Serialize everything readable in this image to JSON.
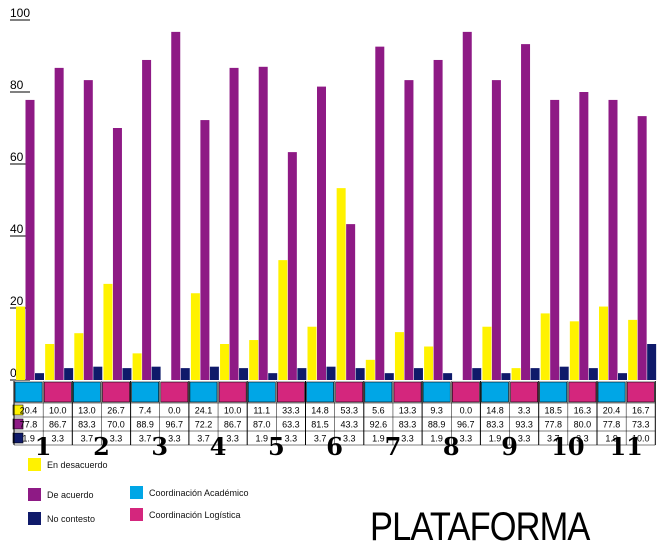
{
  "title": "PLATAFORMA",
  "colors": {
    "desacuerdo": "#fff200",
    "acuerdo": "#8e1a85",
    "no_contesto": "#0f1a6a",
    "coord_academico": "#00a6e6",
    "coord_logistica": "#d4267d"
  },
  "legend": {
    "desacuerdo": "En desacuerdo",
    "acuerdo": "De acuerdo",
    "no_contesto": "No contesto",
    "coord_academico": "Coordinación Académico",
    "coord_logistica": "Coordinación Logística"
  },
  "chart_data": {
    "type": "bar",
    "categories": [
      "1",
      "2",
      "3",
      "4",
      "5",
      "6",
      "7",
      "8",
      "9",
      "10",
      "11"
    ],
    "groups": [
      "Coordinación Académico",
      "Coordinación Logística"
    ],
    "ylim": [
      0,
      100
    ],
    "yticks": [
      "0",
      "20",
      "40",
      "60",
      "80",
      "100"
    ],
    "series": [
      {
        "name": "En desacuerdo",
        "values": [
          [
            20.4,
            10.0
          ],
          [
            13.0,
            26.7
          ],
          [
            7.4,
            0.0
          ],
          [
            24.1,
            10.0
          ],
          [
            11.1,
            33.3
          ],
          [
            14.8,
            53.3
          ],
          [
            5.6,
            13.3
          ],
          [
            9.3,
            0.0
          ],
          [
            14.8,
            3.3
          ],
          [
            18.5,
            16.3
          ],
          [
            20.4,
            16.7
          ]
        ]
      },
      {
        "name": "De acuerdo",
        "values": [
          [
            77.8,
            86.7
          ],
          [
            83.3,
            70.0
          ],
          [
            88.9,
            96.7
          ],
          [
            72.2,
            86.7
          ],
          [
            87.0,
            63.3
          ],
          [
            81.5,
            43.3
          ],
          [
            92.6,
            83.3
          ],
          [
            88.9,
            96.7
          ],
          [
            83.3,
            93.3
          ],
          [
            77.8,
            80.0
          ],
          [
            77.8,
            73.3
          ]
        ]
      },
      {
        "name": "No contesto",
        "values": [
          [
            1.9,
            3.3
          ],
          [
            3.7,
            3.3
          ],
          [
            3.7,
            3.3
          ],
          [
            3.7,
            3.3
          ],
          [
            1.9,
            3.3
          ],
          [
            3.7,
            3.3
          ],
          [
            1.9,
            3.3
          ],
          [
            1.9,
            3.3
          ],
          [
            1.9,
            3.3
          ],
          [
            3.7,
            3.3
          ],
          [
            1.9,
            10.0
          ]
        ]
      }
    ],
    "table_rows": [
      [
        "20.4",
        "10.0",
        "13.0",
        "26.7",
        "7.4",
        "0.0",
        "24.1",
        "10.0",
        "11.1",
        "33.3",
        "14.8",
        "53.3",
        "5.6",
        "13.3",
        "9.3",
        "0.0",
        "14.8",
        "3.3",
        "18.5",
        "16.3",
        "20.4",
        "16.7"
      ],
      [
        "77.8",
        "86.7",
        "83.3",
        "70.0",
        "88.9",
        "96.7",
        "72.2",
        "86.7",
        "87.0",
        "63.3",
        "81.5",
        "43.3",
        "92.6",
        "83.3",
        "88.9",
        "96.7",
        "83.3",
        "93.3",
        "77.8",
        "80.0",
        "77.8",
        "73.3"
      ],
      [
        "1.9",
        "3.3",
        "3.7",
        "3.3",
        "3.7",
        "3.3",
        "3.7",
        "3.3",
        "1.9",
        "3.3",
        "3.7",
        "3.3",
        "1.9",
        "3.3",
        "1.9",
        "3.3",
        "1.9",
        "3.3",
        "3.7",
        "3.3",
        "1.9",
        "10.0"
      ]
    ]
  }
}
